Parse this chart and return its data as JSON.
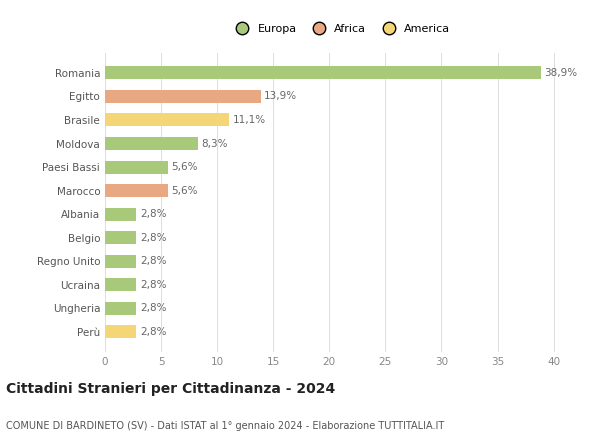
{
  "categories": [
    "Romania",
    "Egitto",
    "Brasile",
    "Moldova",
    "Paesi Bassi",
    "Marocco",
    "Albania",
    "Belgio",
    "Regno Unito",
    "Ucraina",
    "Ungheria",
    "Perù"
  ],
  "values": [
    38.9,
    13.9,
    11.1,
    8.3,
    5.6,
    5.6,
    2.8,
    2.8,
    2.8,
    2.8,
    2.8,
    2.8
  ],
  "labels": [
    "38,9%",
    "13,9%",
    "11,1%",
    "8,3%",
    "5,6%",
    "5,6%",
    "2,8%",
    "2,8%",
    "2,8%",
    "2,8%",
    "2,8%",
    "2,8%"
  ],
  "colors": [
    "#a8c87a",
    "#e8a882",
    "#f5d676",
    "#a8c87a",
    "#a8c87a",
    "#e8a882",
    "#a8c87a",
    "#a8c87a",
    "#a8c87a",
    "#a8c87a",
    "#a8c87a",
    "#f5d676"
  ],
  "legend_labels": [
    "Europa",
    "Africa",
    "America"
  ],
  "legend_colors": [
    "#a8c87a",
    "#e8a882",
    "#f5d676"
  ],
  "title": "Cittadini Stranieri per Cittadinanza - 2024",
  "subtitle": "COMUNE DI BARDINETO (SV) - Dati ISTAT al 1° gennaio 2024 - Elaborazione TUTTITALIA.IT",
  "xlim": [
    0,
    42
  ],
  "xticks": [
    0,
    5,
    10,
    15,
    20,
    25,
    30,
    35,
    40
  ],
  "bg_color": "#ffffff",
  "grid_color": "#dddddd",
  "bar_height": 0.55,
  "label_fontsize": 7.5,
  "ytick_fontsize": 7.5,
  "xtick_fontsize": 7.5,
  "title_fontsize": 10,
  "subtitle_fontsize": 7,
  "legend_fontsize": 8
}
